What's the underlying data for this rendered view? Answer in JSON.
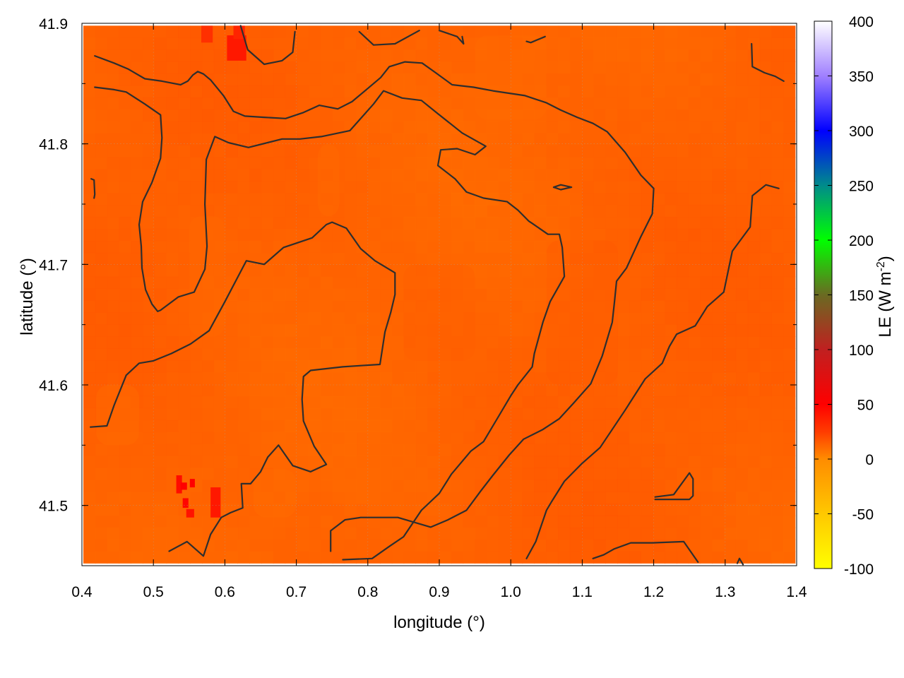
{
  "chart_data": {
    "type": "heatmap",
    "title": "",
    "xlabel": "longitude (°)",
    "ylabel": "latitude (°)",
    "colorbar_label_main": "LE (W m",
    "colorbar_label_exp": "-2",
    "colorbar_label_close": ")",
    "xlim": [
      0.4,
      1.4
    ],
    "ylim": [
      41.45,
      41.9
    ],
    "x_ticks": [
      0.4,
      0.5,
      0.6,
      0.7,
      0.8,
      0.9,
      1.0,
      1.1,
      1.2,
      1.3,
      1.4
    ],
    "x_tick_labels": [
      "0.4",
      "0.5",
      "0.6",
      "0.7",
      "0.8",
      "0.9",
      "1.0",
      "1.1",
      "1.2",
      "1.3",
      "1.4"
    ],
    "y_ticks": [
      41.5,
      41.6,
      41.7,
      41.8,
      41.9
    ],
    "y_tick_labels": [
      "41.5",
      "41.6",
      "41.7",
      "41.8",
      "41.9"
    ],
    "data_extent": {
      "x": [
        0.402,
        1.398
      ],
      "y": [
        41.452,
        41.898
      ]
    },
    "colorbar_range": [
      -100,
      400
    ],
    "colorbar_ticks": [
      -100,
      -50,
      0,
      50,
      100,
      150,
      200,
      250,
      300,
      350,
      400
    ],
    "colorbar_tick_labels": [
      "-100",
      "-50",
      "0",
      "50",
      "100",
      "150",
      "200",
      "250",
      "300",
      "350",
      "400"
    ],
    "colormap_stops": [
      {
        "value": -100,
        "color": "#ffff00"
      },
      {
        "value": -50,
        "color": "#ffc800"
      },
      {
        "value": 0,
        "color": "#ff8c00"
      },
      {
        "value": 25,
        "color": "#ff3c00"
      },
      {
        "value": 50,
        "color": "#ff0000"
      },
      {
        "value": 100,
        "color": "#c02020"
      },
      {
        "value": 150,
        "color": "#6a6a22"
      },
      {
        "value": 200,
        "color": "#00ff00"
      },
      {
        "value": 250,
        "color": "#008b8b"
      },
      {
        "value": 300,
        "color": "#0000ff"
      },
      {
        "value": 350,
        "color": "#a080ff"
      },
      {
        "value": 400,
        "color": "#ffffff"
      }
    ],
    "background_value_range": [
      8,
      18
    ],
    "grid": true,
    "legend": "colorbar-right",
    "contours": [
      [
        [
          0.418,
          41.873
        ],
        [
          0.445,
          41.867
        ],
        [
          0.465,
          41.862
        ],
        [
          0.488,
          41.854
        ],
        [
          0.512,
          41.852
        ],
        [
          0.538,
          41.849
        ],
        [
          0.548,
          41.852
        ],
        [
          0.555,
          41.857
        ],
        [
          0.562,
          41.86
        ],
        [
          0.57,
          41.858
        ],
        [
          0.58,
          41.853
        ],
        [
          0.598,
          41.84
        ],
        [
          0.612,
          41.827
        ],
        [
          0.628,
          41.823
        ],
        [
          0.655,
          41.822
        ],
        [
          0.685,
          41.821
        ],
        [
          0.71,
          41.826
        ],
        [
          0.732,
          41.832
        ],
        [
          0.758,
          41.829
        ],
        [
          0.778,
          41.835
        ],
        [
          0.8,
          41.846
        ],
        [
          0.818,
          41.855
        ],
        [
          0.83,
          41.864
        ],
        [
          0.852,
          41.868
        ],
        [
          0.876,
          41.867
        ],
        [
          0.895,
          41.859
        ],
        [
          0.918,
          41.849
        ],
        [
          0.948,
          41.847
        ],
        [
          0.975,
          41.844
        ],
        [
          1.02,
          41.84
        ],
        [
          1.05,
          41.834
        ],
        [
          1.07,
          41.828
        ],
        [
          1.093,
          41.822
        ],
        [
          1.115,
          41.817
        ],
        [
          1.135,
          41.81
        ],
        [
          1.16,
          41.793
        ],
        [
          1.182,
          41.774
        ],
        [
          1.2,
          41.763
        ],
        [
          1.198,
          41.742
        ],
        [
          1.182,
          41.723
        ],
        [
          1.162,
          41.697
        ],
        [
          1.148,
          41.686
        ],
        [
          1.145,
          41.668
        ],
        [
          1.142,
          41.652
        ],
        [
          1.128,
          41.624
        ],
        [
          1.112,
          41.601
        ],
        [
          1.088,
          41.585
        ],
        [
          1.068,
          41.572
        ],
        [
          1.045,
          41.563
        ],
        [
          1.018,
          41.555
        ],
        [
          0.998,
          41.542
        ],
        [
          0.975,
          41.525
        ],
        [
          0.958,
          41.512
        ],
        [
          0.938,
          41.496
        ],
        [
          0.912,
          41.488
        ],
        [
          0.888,
          41.482
        ],
        [
          0.842,
          41.49
        ],
        [
          0.79,
          41.49
        ],
        [
          0.768,
          41.488
        ],
        [
          0.748,
          41.479
        ],
        [
          0.748,
          41.462
        ]
      ],
      [
        [
          0.418,
          41.847
        ],
        [
          0.445,
          41.845
        ],
        [
          0.462,
          41.843
        ],
        [
          0.488,
          41.833
        ],
        [
          0.51,
          41.824
        ],
        [
          0.512,
          41.805
        ],
        [
          0.51,
          41.788
        ],
        [
          0.498,
          41.768
        ],
        [
          0.485,
          41.752
        ],
        [
          0.48,
          41.733
        ],
        [
          0.483,
          41.715
        ],
        [
          0.484,
          41.697
        ],
        [
          0.489,
          41.679
        ],
        [
          0.498,
          41.667
        ],
        [
          0.506,
          41.661
        ],
        [
          0.51,
          41.662
        ],
        [
          0.535,
          41.673
        ],
        [
          0.557,
          41.677
        ],
        [
          0.572,
          41.696
        ],
        [
          0.575,
          41.715
        ],
        [
          0.572,
          41.75
        ],
        [
          0.574,
          41.787
        ],
        [
          0.586,
          41.806
        ],
        [
          0.605,
          41.801
        ],
        [
          0.633,
          41.797
        ],
        [
          0.68,
          41.804
        ],
        [
          0.705,
          41.804
        ],
        [
          0.735,
          41.806
        ],
        [
          0.775,
          41.811
        ],
        [
          0.808,
          41.833
        ],
        [
          0.822,
          41.844
        ],
        [
          0.848,
          41.838
        ],
        [
          0.875,
          41.836
        ],
        [
          0.898,
          41.825
        ],
        [
          0.932,
          41.809
        ],
        [
          0.965,
          41.798
        ],
        [
          0.95,
          41.791
        ],
        [
          0.925,
          41.796
        ],
        [
          0.902,
          41.795
        ],
        [
          0.898,
          41.782
        ],
        [
          0.922,
          41.771
        ],
        [
          0.938,
          41.76
        ],
        [
          0.962,
          41.755
        ],
        [
          0.995,
          41.752
        ],
        [
          1.01,
          41.745
        ],
        [
          1.025,
          41.736
        ],
        [
          1.03,
          41.734
        ],
        [
          1.052,
          41.725
        ],
        [
          1.068,
          41.725
        ],
        [
          1.072,
          41.714
        ],
        [
          1.075,
          41.69
        ],
        [
          1.055,
          41.669
        ],
        [
          1.045,
          41.652
        ],
        [
          1.033,
          41.626
        ],
        [
          1.03,
          41.615
        ],
        [
          1.01,
          41.6
        ],
        [
          1.0,
          41.591
        ],
        [
          0.98,
          41.571
        ],
        [
          0.962,
          41.553
        ],
        [
          0.944,
          41.545
        ],
        [
          0.917,
          41.526
        ],
        [
          0.9,
          41.51
        ],
        [
          0.875,
          41.496
        ],
        [
          0.85,
          41.474
        ],
        [
          0.83,
          41.466
        ],
        [
          0.806,
          41.456
        ],
        [
          0.765,
          41.455
        ]
      ],
      [
        [
          0.412,
          41.565
        ],
        [
          0.435,
          41.566
        ],
        [
          0.445,
          41.583
        ],
        [
          0.462,
          41.608
        ],
        [
          0.48,
          41.618
        ],
        [
          0.5,
          41.62
        ],
        [
          0.525,
          41.626
        ],
        [
          0.552,
          41.634
        ],
        [
          0.578,
          41.645
        ],
        [
          0.6,
          41.669
        ],
        [
          0.63,
          41.703
        ],
        [
          0.655,
          41.7
        ],
        [
          0.682,
          41.714
        ],
        [
          0.722,
          41.722
        ],
        [
          0.742,
          41.733
        ],
        [
          0.75,
          41.735
        ],
        [
          0.77,
          41.73
        ],
        [
          0.79,
          41.713
        ],
        [
          0.81,
          41.703
        ],
        [
          0.838,
          41.693
        ],
        [
          0.838,
          41.675
        ],
        [
          0.832,
          41.66
        ],
        [
          0.824,
          41.644
        ],
        [
          0.817,
          41.617
        ],
        [
          0.79,
          41.616
        ],
        [
          0.765,
          41.615
        ],
        [
          0.72,
          41.612
        ],
        [
          0.71,
          41.607
        ],
        [
          0.708,
          41.588
        ],
        [
          0.71,
          41.57
        ],
        [
          0.725,
          41.549
        ],
        [
          0.742,
          41.534
        ],
        [
          0.72,
          41.528
        ],
        [
          0.695,
          41.533
        ],
        [
          0.675,
          41.55
        ],
        [
          0.66,
          41.54
        ],
        [
          0.65,
          41.528
        ],
        [
          0.636,
          41.518
        ],
        [
          0.623,
          41.518
        ],
        [
          0.625,
          41.498
        ],
        [
          0.608,
          41.494
        ],
        [
          0.595,
          41.49
        ],
        [
          0.58,
          41.476
        ],
        [
          0.57,
          41.458
        ],
        [
          0.547,
          41.47
        ],
        [
          0.522,
          41.462
        ]
      ],
      [
        [
          0.622,
          41.898
        ],
        [
          0.632,
          41.878
        ],
        [
          0.655,
          41.866
        ],
        [
          0.68,
          41.869
        ],
        [
          0.695,
          41.876
        ],
        [
          0.698,
          41.893
        ]
      ],
      [
        [
          0.788,
          41.893
        ],
        [
          0.808,
          41.882
        ],
        [
          0.838,
          41.883
        ],
        [
          0.872,
          41.894
        ]
      ],
      [
        [
          0.9,
          41.894
        ],
        [
          0.925,
          41.889
        ],
        [
          0.934,
          41.883
        ],
        [
          0.932,
          41.889
        ]
      ],
      [
        [
          1.022,
          41.885
        ],
        [
          1.028,
          41.884
        ],
        [
          1.048,
          41.889
        ]
      ],
      [
        [
          1.337,
          41.883
        ],
        [
          1.338,
          41.864
        ],
        [
          1.355,
          41.859
        ],
        [
          1.37,
          41.856
        ],
        [
          1.382,
          41.852
        ]
      ],
      [
        [
          0.413,
          41.771
        ],
        [
          0.417,
          41.77
        ],
        [
          0.418,
          41.758
        ],
        [
          0.417,
          41.755
        ]
      ],
      [
        [
          1.06,
          41.764
        ],
        [
          1.07,
          41.766
        ],
        [
          1.085,
          41.764
        ],
        [
          1.07,
          41.762
        ],
        [
          1.06,
          41.764
        ]
      ],
      [
        [
          1.022,
          41.456
        ],
        [
          1.035,
          41.47
        ],
        [
          1.05,
          41.496
        ],
        [
          1.057,
          41.503
        ],
        [
          1.075,
          41.52
        ],
        [
          1.1,
          41.535
        ],
        [
          1.125,
          41.548
        ],
        [
          1.16,
          41.579
        ],
        [
          1.188,
          41.605
        ],
        [
          1.212,
          41.618
        ],
        [
          1.222,
          41.632
        ],
        [
          1.232,
          41.642
        ],
        [
          1.258,
          41.649
        ],
        [
          1.275,
          41.665
        ],
        [
          1.298,
          41.677
        ],
        [
          1.31,
          41.711
        ],
        [
          1.335,
          41.731
        ],
        [
          1.338,
          41.757
        ],
        [
          1.357,
          41.766
        ],
        [
          1.375,
          41.763
        ]
      ],
      [
        [
          1.202,
          41.507
        ],
        [
          1.228,
          41.509
        ],
        [
          1.25,
          41.527
        ],
        [
          1.255,
          41.522
        ],
        [
          1.255,
          41.508
        ],
        [
          1.25,
          41.505
        ],
        [
          1.202,
          41.505
        ]
      ],
      [
        [
          1.115,
          41.456
        ],
        [
          1.13,
          41.459
        ],
        [
          1.145,
          41.464
        ],
        [
          1.168,
          41.469
        ],
        [
          1.198,
          41.469
        ],
        [
          1.242,
          41.47
        ],
        [
          1.262,
          41.453
        ]
      ],
      [
        [
          1.317,
          41.452
        ],
        [
          1.32,
          41.456
        ],
        [
          1.325,
          41.451
        ]
      ]
    ],
    "anomalies": [
      {
        "x": [
          0.58,
          0.594
        ],
        "y": [
          41.49,
          41.515
        ],
        "value": 40
      },
      {
        "x": [
          0.532,
          0.54
        ],
        "y": [
          41.51,
          41.525
        ],
        "value": 45
      },
      {
        "x": [
          0.538,
          0.547
        ],
        "y": [
          41.513,
          41.519
        ],
        "value": 50
      },
      {
        "x": [
          0.551,
          0.558
        ],
        "y": [
          41.515,
          41.522
        ],
        "value": 50
      },
      {
        "x": [
          0.541,
          0.549
        ],
        "y": [
          41.498,
          41.506
        ],
        "value": 48
      },
      {
        "x": [
          0.546,
          0.557
        ],
        "y": [
          41.49,
          41.497
        ],
        "value": 42
      },
      {
        "x": [
          0.603,
          0.63
        ],
        "y": [
          41.869,
          41.89
        ],
        "value": 40
      },
      {
        "x": [
          0.612,
          0.628
        ],
        "y": [
          41.887,
          41.898
        ],
        "value": 35
      },
      {
        "x": [
          0.567,
          0.583
        ],
        "y": [
          41.884,
          41.898
        ],
        "value": 30
      }
    ],
    "smooth_patches": [
      {
        "x": [
          0.55,
          0.6
        ],
        "y": [
          41.64,
          41.74
        ],
        "value": 11
      },
      {
        "x": [
          0.73,
          0.76
        ],
        "y": [
          41.74,
          41.8
        ],
        "value": 10
      },
      {
        "x": [
          0.42,
          0.48
        ],
        "y": [
          41.55,
          41.6
        ],
        "value": 9
      },
      {
        "x": [
          0.85,
          0.95
        ],
        "y": [
          41.62,
          41.7
        ],
        "value": 14
      },
      {
        "x": [
          1.05,
          1.15
        ],
        "y": [
          41.6,
          41.72
        ],
        "value": 16
      },
      {
        "x": [
          0.95,
          1.05
        ],
        "y": [
          41.82,
          41.89
        ],
        "value": 10
      },
      {
        "x": [
          0.64,
          0.7
        ],
        "y": [
          41.49,
          41.53
        ],
        "value": 9
      }
    ]
  }
}
